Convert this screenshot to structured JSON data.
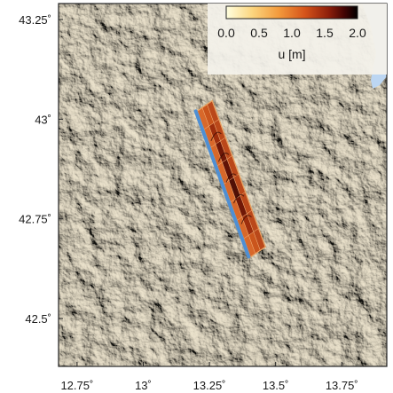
{
  "map": {
    "lon_range": [
      12.68,
      13.92
    ],
    "lat_range": [
      42.38,
      43.29
    ],
    "x_ticks": [
      {
        "value": 12.75,
        "label": "12.75˚"
      },
      {
        "value": 13.0,
        "label": "13˚"
      },
      {
        "value": 13.25,
        "label": "13.25˚"
      },
      {
        "value": 13.5,
        "label": "13.5˚"
      },
      {
        "value": 13.75,
        "label": "13.75˚"
      }
    ],
    "y_ticks": [
      {
        "value": 43.25,
        "label": "43.25˚"
      },
      {
        "value": 43.0,
        "label": "43˚"
      },
      {
        "value": 42.75,
        "label": "42.75˚"
      },
      {
        "value": 42.5,
        "label": "42.5˚"
      }
    ],
    "fault": {
      "corners": [
        {
          "lon": 13.205,
          "lat": 43.02
        },
        {
          "lon": 13.26,
          "lat": 43.045
        },
        {
          "lon": 13.46,
          "lat": 42.68
        },
        {
          "lon": 13.405,
          "lat": 42.655
        }
      ],
      "surface_trace": [
        {
          "lon": 13.205,
          "lat": 43.02
        },
        {
          "lon": 13.405,
          "lat": 42.655
        }
      ]
    },
    "colors": {
      "terrain": "#d8cdb2",
      "sea": "#bcd6f2",
      "trace": "#4f8fd3"
    }
  },
  "colorbar": {
    "ticks": [
      "0.0",
      "0.5",
      "1.0",
      "1.5",
      "2.0"
    ],
    "label": "u [m]",
    "range": [
      0,
      2
    ],
    "colors": [
      "#ffffe0",
      "#fbd57e",
      "#f39a3c",
      "#d5531a",
      "#8e1f0b",
      "#420404",
      "#000000"
    ]
  }
}
